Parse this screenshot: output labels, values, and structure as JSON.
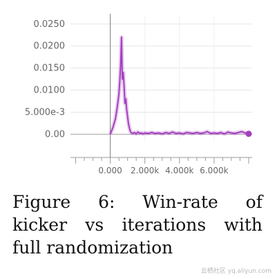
{
  "chart_data": {
    "type": "line",
    "title": "",
    "xlabel": "",
    "ylabel": "",
    "xlim": [
      -2300,
      8200
    ],
    "ylim": [
      -0.0015,
      0.027
    ],
    "x_ticks": [
      0,
      2000,
      4000,
      6000
    ],
    "x_tick_labels": [
      "0.000",
      "2.000k",
      "4.000k",
      "6.000k"
    ],
    "y_ticks": [
      0,
      0.005,
      0.01,
      0.015,
      0.02,
      0.025
    ],
    "y_tick_labels": [
      "0.00",
      "5.000e-3",
      "0.0100",
      "0.0150",
      "0.0200",
      "0.0250"
    ],
    "grid": true,
    "series": [
      {
        "color": "#a43fbf",
        "x": [
          0,
          150,
          300,
          400,
          500,
          550,
          600,
          650,
          700,
          750,
          800,
          850,
          900,
          950,
          1000,
          1050,
          1100,
          1150,
          1200,
          1300,
          1400,
          1500,
          1600,
          1700,
          1800,
          1900,
          2000,
          2200,
          2400,
          2600,
          2800,
          3000,
          3200,
          3400,
          3600,
          3800,
          4000,
          4200,
          4400,
          4600,
          4800,
          5000,
          5200,
          5400,
          5600,
          5800,
          6000,
          6200,
          6400,
          6600,
          6800,
          7000,
          7200,
          7400,
          7600,
          7800,
          8000
        ],
        "y": [
          0,
          0.0015,
          0.0035,
          0.006,
          0.009,
          0.012,
          0.0155,
          0.022,
          0.0125,
          0.014,
          0.011,
          0.007,
          0.008,
          0.0055,
          0.004,
          0.0025,
          0.0015,
          0.0008,
          0.0004,
          0.0002,
          0.0004,
          0.0001,
          0.0005,
          0.0002,
          0.0003,
          0.0001,
          0.0003,
          0.0002,
          0.0004,
          0.0002,
          0.0003,
          0.0001,
          0.0004,
          0.0002,
          0.0005,
          0.0002,
          0.0003,
          0.0001,
          0.0004,
          0.0003,
          0.0002,
          0.0004,
          0.0002,
          0.0003,
          0.0006,
          0.0002,
          0.0003,
          0.0002,
          0.0004,
          0.0001,
          0.0005,
          0.0003,
          0.0002,
          0.0004,
          0.0006,
          0.0003,
          0.0001
        ]
      }
    ]
  },
  "caption": {
    "line1": [
      "Figure",
      "6:",
      "Win-rate",
      "of"
    ],
    "line2": [
      "kicker",
      "vs",
      "iterations",
      "with"
    ],
    "line3": "full randomization"
  },
  "watermark": "云栖社区 yq.aliyun.com"
}
